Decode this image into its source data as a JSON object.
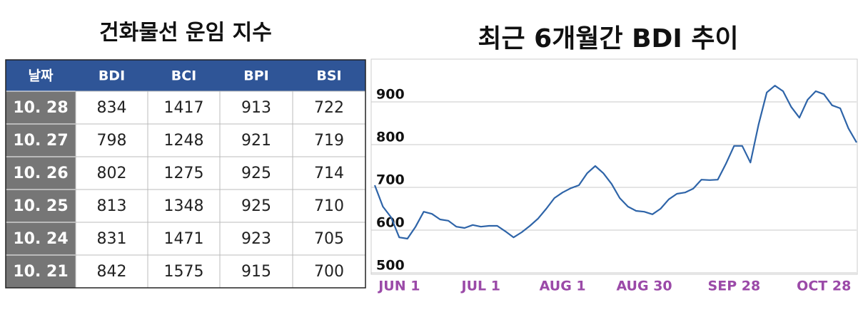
{
  "table": {
    "title": "건화물선 운임 지수",
    "columns": [
      "날짜",
      "BDI",
      "BCI",
      "BPI",
      "BSI"
    ],
    "rows": [
      [
        "10. 28",
        "834",
        "1417",
        "913",
        "722"
      ],
      [
        "10. 27",
        "798",
        "1248",
        "921",
        "719"
      ],
      [
        "10. 26",
        "802",
        "1275",
        "925",
        "714"
      ],
      [
        "10. 25",
        "813",
        "1348",
        "925",
        "710"
      ],
      [
        "10. 24",
        "831",
        "1471",
        "923",
        "705"
      ],
      [
        "10. 21",
        "842",
        "1575",
        "915",
        "700"
      ]
    ]
  },
  "chart_data": {
    "type": "line",
    "title": "최근 6개월간 BDI 추이",
    "categories": [
      null,
      null,
      null,
      "JUN 1",
      null,
      null,
      null,
      null,
      null,
      null,
      null,
      null,
      null,
      "JUL 1",
      null,
      null,
      null,
      null,
      null,
      null,
      null,
      null,
      null,
      "AUG 1",
      null,
      null,
      null,
      null,
      null,
      null,
      null,
      null,
      null,
      "AUG 30",
      null,
      null,
      null,
      null,
      null,
      null,
      null,
      null,
      null,
      null,
      "SEP 28",
      null,
      null,
      null,
      null,
      null,
      null,
      null,
      null,
      null,
      null,
      "OCT 28",
      null,
      null,
      null,
      null
    ],
    "series": [
      {
        "name": "BDI",
        "color": "#2e64a8",
        "values": [
          705,
          655,
          630,
          583,
          580,
          608,
          643,
          638,
          625,
          622,
          608,
          605,
          612,
          608,
          610,
          610,
          597,
          583,
          595,
          610,
          627,
          650,
          675,
          688,
          698,
          705,
          733,
          750,
          733,
          708,
          675,
          655,
          645,
          643,
          637,
          650,
          672,
          685,
          688,
          697,
          718,
          717,
          718,
          755,
          797,
          797,
          758,
          847,
          922,
          938,
          925,
          888,
          863,
          905,
          925,
          918,
          892,
          885,
          838,
          805
        ]
      }
    ],
    "ylim": [
      500,
      1000
    ],
    "yticks": [
      500,
      600,
      700,
      800,
      900
    ],
    "grid": true,
    "xlabel_color": "#9b4aa8"
  }
}
